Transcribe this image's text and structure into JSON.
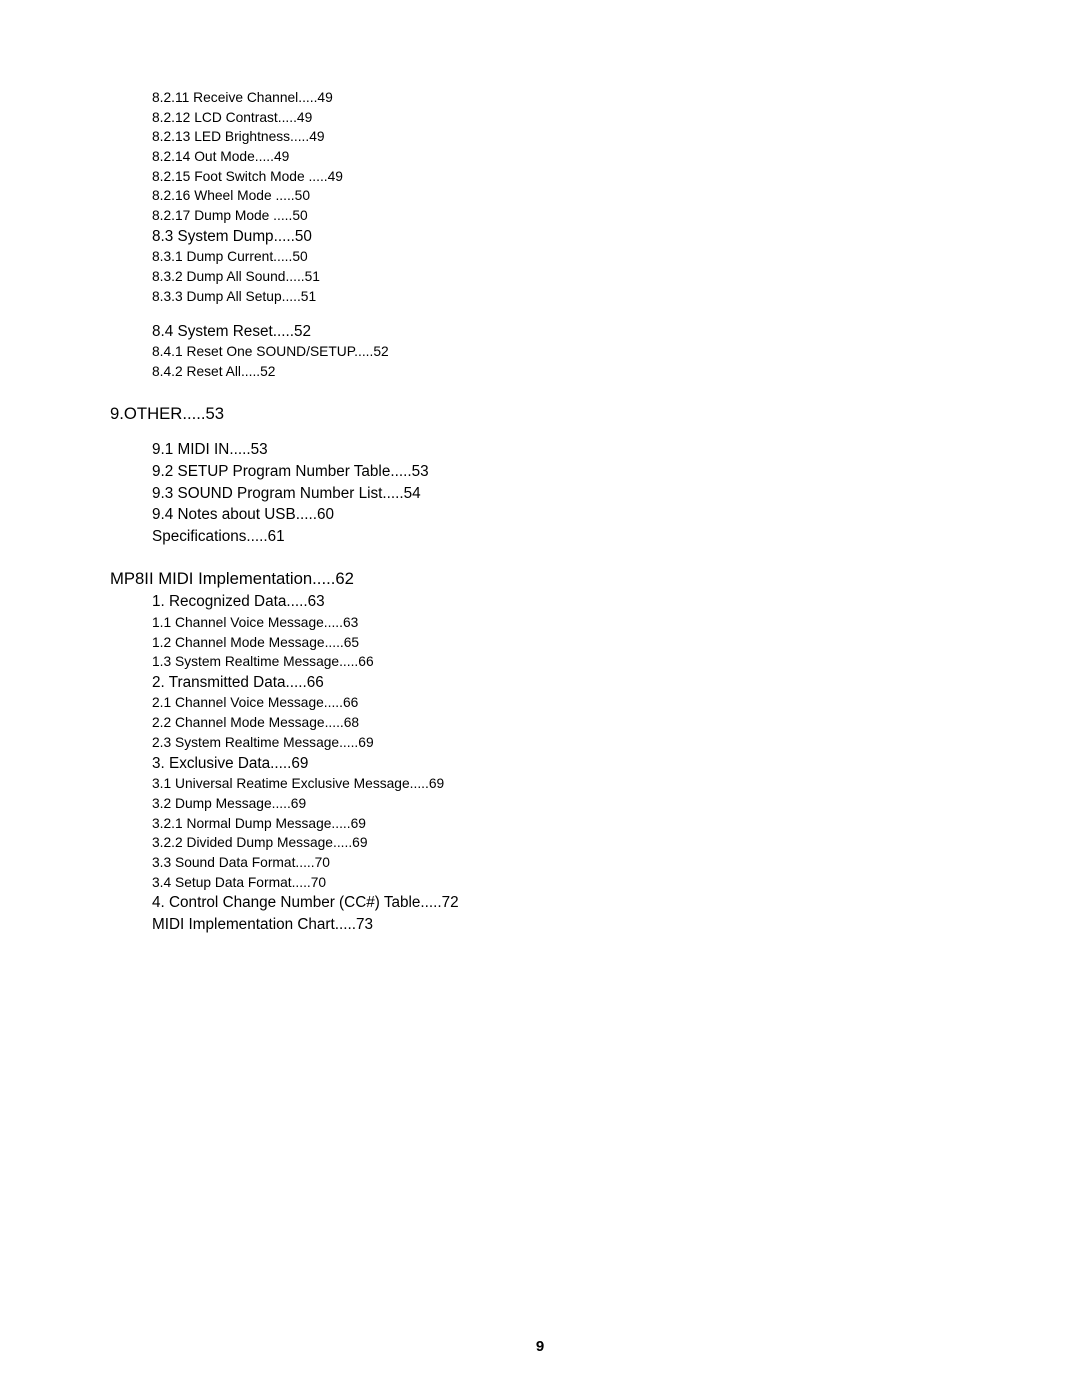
{
  "page_number": "9",
  "entries": [
    {
      "text": "8.2.11 Receive Channel.....49",
      "cls": "small indent2"
    },
    {
      "text": "8.2.12 LCD Contrast.....49",
      "cls": "small indent2"
    },
    {
      "text": "8.2.13 LED Brightness.....49",
      "cls": "small indent2"
    },
    {
      "text": "8.2.14 Out Mode.....49",
      "cls": "small indent2"
    },
    {
      "text": "8.2.15 Foot Switch Mode .....49",
      "cls": "small indent2"
    },
    {
      "text": "8.2.16 Wheel Mode .....50",
      "cls": "small indent2"
    },
    {
      "text": "8.2.17 Dump Mode .....50",
      "cls": "small indent2"
    },
    {
      "text": "8.3 System Dump.....50",
      "cls": "med indent1"
    },
    {
      "text": "8.3.1 Dump Current.....50",
      "cls": "small indent2"
    },
    {
      "text": "8.3.2 Dump All Sound.....51",
      "cls": "small indent2"
    },
    {
      "text": "8.3.3 Dump All Setup.....51",
      "cls": "small indent2"
    },
    {
      "text": "8.4 System Reset.....52",
      "cls": "med indent1 gap-before"
    },
    {
      "text": "8.4.1 Reset One SOUND/SETUP.....52",
      "cls": "small indent2"
    },
    {
      "text": "8.4.2 Reset All.....52",
      "cls": "small indent2"
    },
    {
      "text": "9.OTHER.....53",
      "cls": "large section-gap"
    },
    {
      "text": "9.1 MIDI IN.....53",
      "cls": "med indent1 gap-before"
    },
    {
      "text": "9.2 SETUP Program Number Table.....53",
      "cls": "med indent1"
    },
    {
      "text": "9.3 SOUND Program Number List.....54",
      "cls": "med indent1"
    },
    {
      "text": "9.4 Notes about USB.....60",
      "cls": "med indent1"
    },
    {
      "text": "Specifications.....61",
      "cls": "med indent1"
    },
    {
      "text": "MP8II MIDI Implementation.....62",
      "cls": "large section-gap"
    },
    {
      "text": "1. Recognized Data.....63",
      "cls": "med indent1"
    },
    {
      "text": "1.1 Channel Voice Message.....63",
      "cls": "small indent2"
    },
    {
      "text": "1.2 Channel Mode Message.....65",
      "cls": "small indent2"
    },
    {
      "text": "1.3 System Realtime Message.....66",
      "cls": "small indent2"
    },
    {
      "text": "2. Transmitted Data.....66",
      "cls": "med indent1"
    },
    {
      "text": "2.1 Channel Voice Message.....66",
      "cls": "small indent2"
    },
    {
      "text": "2.2 Channel Mode Message.....68",
      "cls": "small indent2"
    },
    {
      "text": "2.3 System Realtime Message.....69",
      "cls": "small indent2"
    },
    {
      "text": "3. Exclusive Data.....69",
      "cls": "med indent1"
    },
    {
      "text": "3.1 Universal Reatime Exclusive Message.....69",
      "cls": "small indent2"
    },
    {
      "text": "3.2 Dump Message.....69",
      "cls": "small indent2"
    },
    {
      "text": "3.2.1 Normal Dump Message.....69",
      "cls": "small indent2"
    },
    {
      "text": "3.2.2 Divided Dump Message.....69",
      "cls": "small indent2"
    },
    {
      "text": "3.3 Sound Data Format.....70",
      "cls": "small indent2"
    },
    {
      "text": "3.4 Setup Data Format.....70",
      "cls": "small indent2"
    },
    {
      "text": "4. Control Change Number (CC#) Table.....72",
      "cls": "med indent1"
    },
    {
      "text": "MIDI Implementation Chart.....73",
      "cls": "med indent1"
    }
  ]
}
